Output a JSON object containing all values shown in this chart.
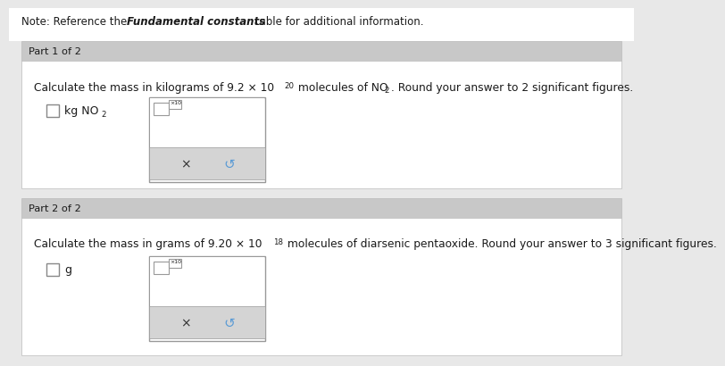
{
  "note_regular1": "Note: Reference the ",
  "note_bold": "Fundamental constants",
  "note_regular2": " table for additional information.",
  "part1_label": "Part 1 of 2",
  "part2_label": "Part 2 of 2",
  "part1_q1": "Calculate the mass in kilograms of 9.2 × 10",
  "part1_exp": "20",
  "part1_q2": " molecules of NO",
  "part1_sub2": "2",
  "part1_q3": ". Round your answer to 2 significant figures.",
  "part1_unit": "kg NO",
  "part1_unit_sub": "2",
  "part2_q1": "Calculate the mass in grams of 9.20 × 10",
  "part2_exp": "18",
  "part2_q2": " molecules of diarsenic pentaoxide. Round your answer to 3 significant figures.",
  "part2_unit": "g",
  "bg_page": "#e8e8e8",
  "bg_white": "#ffffff",
  "bg_header": "#c8c8c8",
  "border_color": "#bbbbbb",
  "text_dark": "#1a1a1a",
  "btn_gray": "#d4d4d4",
  "btn_x_color": "#333333",
  "btn_redo_color": "#5b9bd5",
  "input_box_border": "#999999",
  "checkbox_border": "#888888"
}
